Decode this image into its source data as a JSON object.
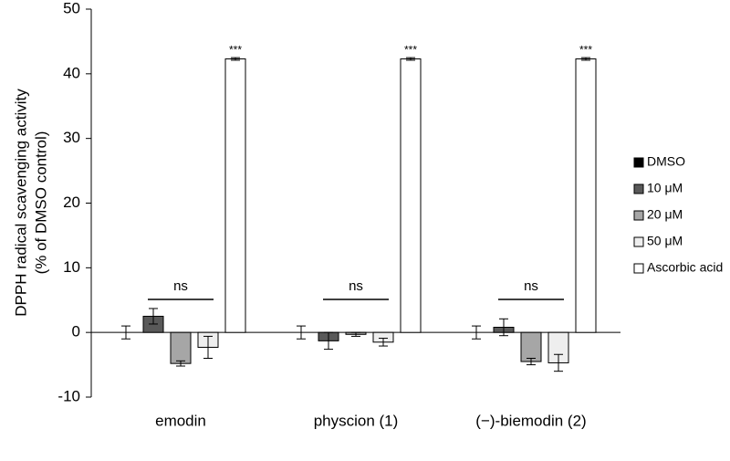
{
  "chart_data": {
    "type": "bar",
    "ylabel": [
      "DPPH radical scavenging activity",
      "(% of DMSO control)"
    ],
    "categories": [
      "emodin",
      "physcion (1)",
      "(−)-biemodin (2)"
    ],
    "series": [
      {
        "name": "DMSO",
        "color": "#000000",
        "values": [
          0,
          0,
          0
        ],
        "errors": [
          1,
          1,
          1
        ]
      },
      {
        "name": "10 μM",
        "color": "#595959",
        "values": [
          2.5,
          -1.3,
          0.8
        ],
        "errors": [
          1.2,
          1.3,
          1.3
        ]
      },
      {
        "name": "20 μM",
        "color": "#a6a6a6",
        "values": [
          -4.8,
          -0.3,
          -4.5
        ],
        "errors": [
          0.4,
          0.3,
          0.5
        ]
      },
      {
        "name": "50 μM",
        "color": "#eeeeee",
        "values": [
          -2.3,
          -1.5,
          -4.7
        ],
        "errors": [
          1.7,
          0.6,
          1.3
        ]
      },
      {
        "name": "Ascorbic acid",
        "color": "#ffffff",
        "values": [
          42.3,
          42.3,
          42.3
        ],
        "errors": [
          0.2,
          0.2,
          0.2
        ],
        "labels": [
          "***",
          "***",
          "***"
        ]
      }
    ],
    "group_labels": [
      "ns",
      "ns",
      "ns"
    ],
    "ylim": [
      -10,
      50
    ],
    "yticks": [
      -10,
      0,
      10,
      20,
      30,
      40,
      50
    ],
    "grid": false
  }
}
